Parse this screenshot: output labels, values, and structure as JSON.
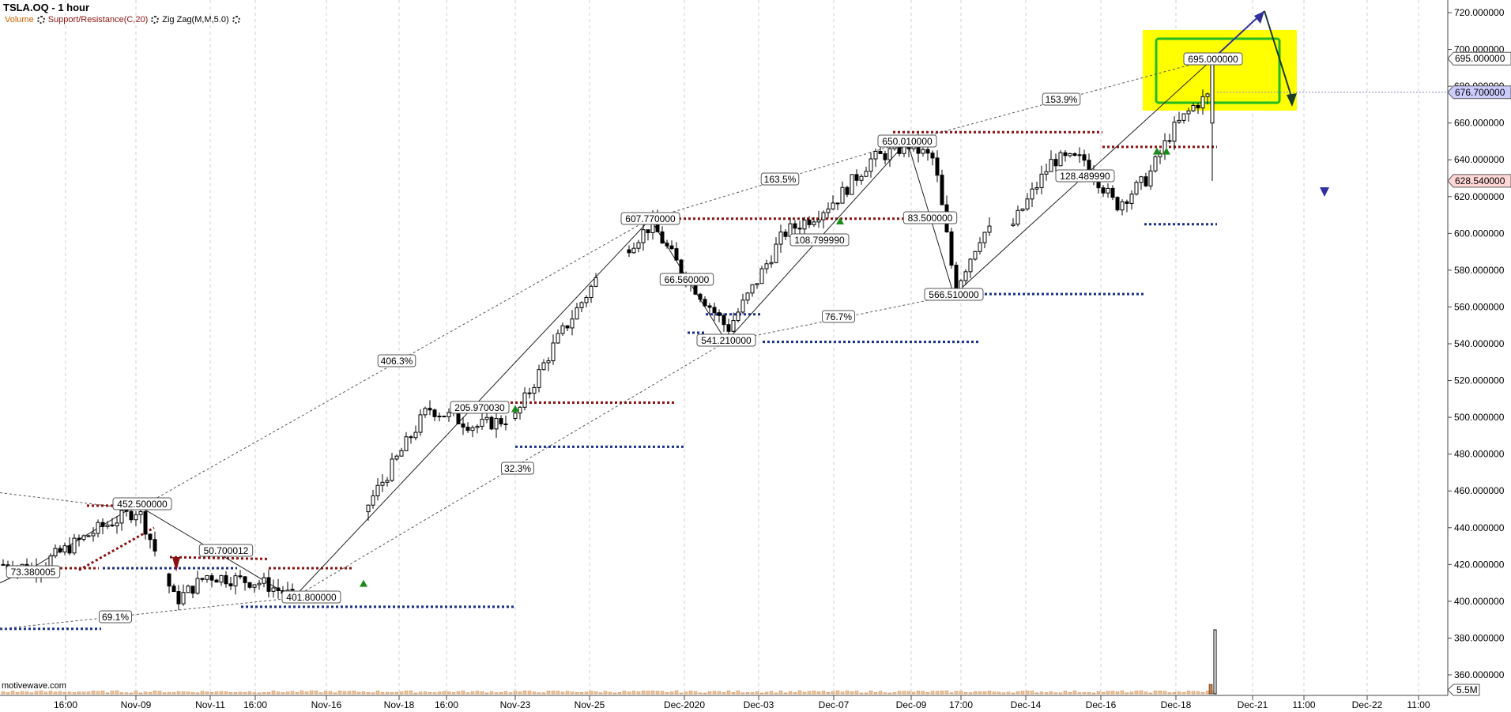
{
  "header": {
    "title": "TSLA.OQ - 1 hour",
    "volume_label": "Volume",
    "sr_label": "Support/Resistance(C,20)",
    "zz_label": "Zig Zag(M,M,5.0)"
  },
  "source": "motivewave.com",
  "colors": {
    "support": "#1a2f8a",
    "resistance": "#8b1010",
    "highlight_box": "#ffff00",
    "green_box": "#22bb22",
    "arrow": "#30309a",
    "price_badge": "#ccccff",
    "low_badge": "#ffd7d7"
  },
  "chart_data": {
    "type": "candlestick",
    "title": "TSLA.OQ - 1 hour",
    "ylim": [
      345,
      727
    ],
    "y_ticks": [
      "360.000000",
      "380.000000",
      "400.000000",
      "420.000000",
      "440.000000",
      "460.000000",
      "480.000000",
      "500.000000",
      "520.000000",
      "540.000000",
      "560.000000",
      "580.000000",
      "600.000000",
      "620.000000",
      "640.000000",
      "660.000000",
      "680.000000",
      "700.000000",
      "720.000000"
    ],
    "x_ticks": [
      "16:00",
      "Nov-09",
      "Nov-11",
      "16:00",
      "Nov-16",
      "Nov-18",
      "16:00",
      "Nov-23",
      "Nov-25",
      "Dec-2020",
      "Dec-03",
      "Dec-07",
      "Dec-09",
      "17:00",
      "Dec-14",
      "Dec-16",
      "Dec-18",
      "Dec-21",
      "11:00",
      "Dec-22",
      "11:00"
    ],
    "price_badges": [
      {
        "label": "720.000000",
        "value": 720,
        "style": "plain"
      },
      {
        "label": "695.000000",
        "value": 695,
        "style": "outline"
      },
      {
        "label": "676.700000",
        "value": 676.7,
        "style": "current"
      },
      {
        "label": "628.540000",
        "value": 628.54,
        "style": "low"
      }
    ],
    "volume_badge": "5.5M",
    "zigzag_pivots": [
      {
        "label": "73.380005",
        "value": 418.5
      },
      {
        "label": "452.500000",
        "value": 452.5
      },
      {
        "label": "50.700012",
        "value": 421
      },
      {
        "label": "401.800000",
        "value": 401.8
      },
      {
        "label": "205.970030",
        "value": 503
      },
      {
        "label": "607.770000",
        "value": 607.77
      },
      {
        "label": "66.560000",
        "value": 581
      },
      {
        "label": "541.210000",
        "value": 541.21
      },
      {
        "label": "108.799990",
        "value": 598
      },
      {
        "label": "650.010000",
        "value": 650.01
      },
      {
        "label": "83.500000",
        "value": 606
      },
      {
        "label": "566.510000",
        "value": 566.51
      },
      {
        "label": "128.489990",
        "value": 628
      },
      {
        "label": "695.000000",
        "value": 695
      }
    ],
    "percent_labels": [
      "406.3%",
      "163.5%",
      "153.9%",
      "32.3%",
      "76.7%",
      "69.1%"
    ],
    "series": [
      {
        "type": "resistance",
        "segments": [
          [
            417,
            440
          ],
          [
            452,
            452
          ],
          [
            424,
            423
          ],
          [
            418,
            418
          ],
          [
            508,
            508
          ],
          [
            608,
            608
          ],
          [
            655,
            655
          ],
          [
            647,
            647
          ]
        ]
      },
      {
        "type": "support",
        "segments": [
          [
            385,
            385
          ],
          [
            418,
            418
          ],
          [
            397,
            397
          ],
          [
            484,
            484
          ],
          [
            541,
            541
          ],
          [
            567,
            567
          ],
          [
            605,
            605
          ]
        ]
      }
    ]
  }
}
